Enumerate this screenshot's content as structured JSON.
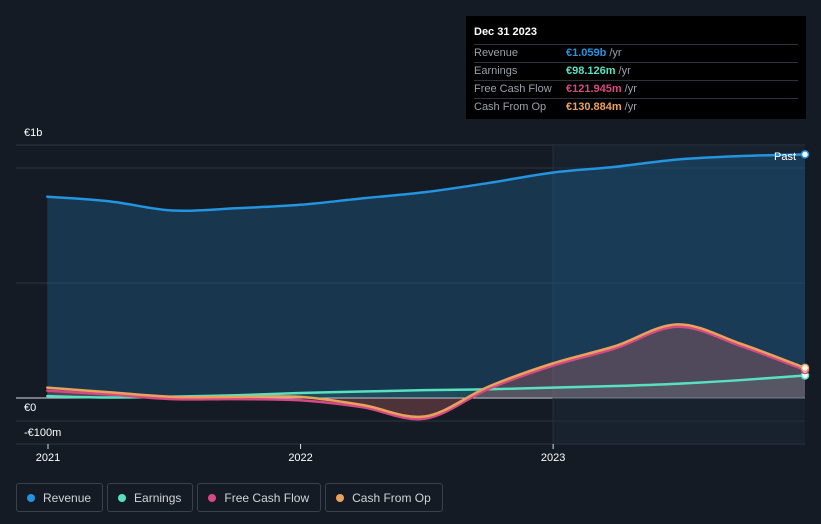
{
  "chart_data": {
    "type": "line",
    "y_tick_labels": [
      "€1b",
      "€0",
      "-€100m"
    ],
    "x_tick_labels": [
      "2021",
      "2022",
      "2023"
    ],
    "past_label": "Past",
    "ylim": [
      -200,
      1100
    ],
    "x": [
      "2020-12-31",
      "2021-03-31",
      "2021-06-30",
      "2021-09-30",
      "2021-12-31",
      "2022-03-31",
      "2022-06-30",
      "2022-09-30",
      "2022-12-31",
      "2023-03-31",
      "2023-06-30",
      "2023-09-30",
      "2023-12-31"
    ],
    "series": [
      {
        "name": "Revenue",
        "color": "#2394df",
        "values": [
          875,
          855,
          815,
          825,
          840,
          868,
          895,
          935,
          980,
          1005,
          1037,
          1052,
          1059
        ]
      },
      {
        "name": "Earnings",
        "color": "#58e1c1",
        "values": [
          8,
          2,
          6,
          12,
          22,
          28,
          34,
          38,
          45,
          52,
          62,
          78,
          98
        ]
      },
      {
        "name": "Free Cash Flow",
        "color": "#d64a84",
        "values": [
          32,
          15,
          -5,
          -5,
          -10,
          -40,
          -90,
          40,
          140,
          215,
          310,
          225,
          122
        ]
      },
      {
        "name": "Cash From Op",
        "color": "#e9a25c",
        "values": [
          45,
          25,
          5,
          5,
          5,
          -30,
          -80,
          50,
          150,
          225,
          320,
          235,
          131
        ]
      }
    ]
  },
  "tooltip": {
    "date": "Dec 31 2023",
    "rows": [
      {
        "label": "Revenue",
        "value": "€1.059b",
        "unit": "/yr",
        "color": "#2394df"
      },
      {
        "label": "Earnings",
        "value": "€98.126m",
        "unit": "/yr",
        "color": "#58e1c1"
      },
      {
        "label": "Free Cash Flow",
        "value": "€121.945m",
        "unit": "/yr",
        "color": "#d64a84"
      },
      {
        "label": "Cash From Op",
        "value": "€130.884m",
        "unit": "/yr",
        "color": "#e9a25c"
      }
    ]
  },
  "legend": [
    {
      "label": "Revenue",
      "color": "#2394df"
    },
    {
      "label": "Earnings",
      "color": "#58e1c1"
    },
    {
      "label": "Free Cash Flow",
      "color": "#d64a84"
    },
    {
      "label": "Cash From Op",
      "color": "#e9a25c"
    }
  ]
}
